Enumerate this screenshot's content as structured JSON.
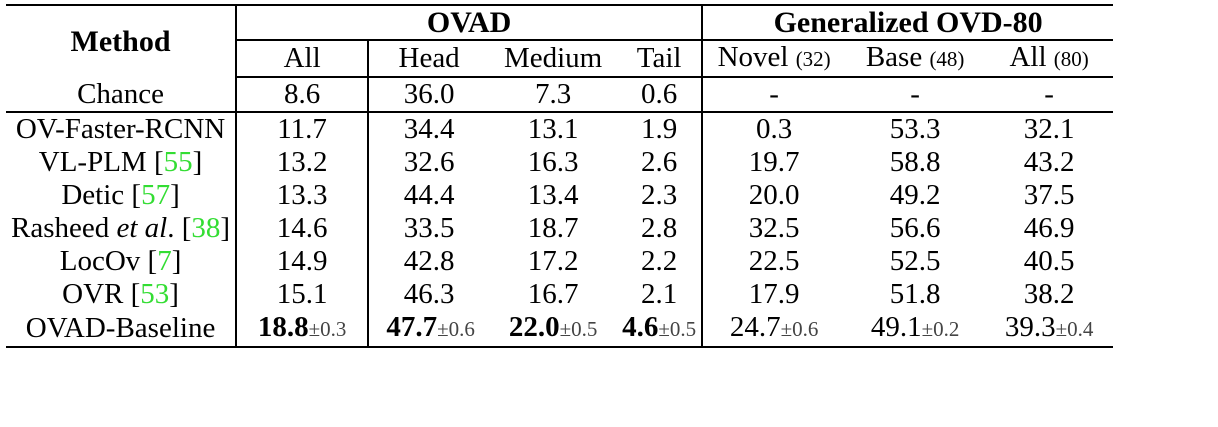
{
  "header": {
    "method": "Method",
    "ovad": "OVAD",
    "ovd": "Generalized OVD-80",
    "cols": [
      {
        "label": "All",
        "sub": ""
      },
      {
        "label": "Head",
        "sub": ""
      },
      {
        "label": "Medium",
        "sub": ""
      },
      {
        "label": "Tail",
        "sub": ""
      },
      {
        "label": "Novel",
        "sub": "(32)"
      },
      {
        "label": "Base",
        "sub": "(48)"
      },
      {
        "label": "All",
        "sub": "(80)"
      }
    ]
  },
  "chance": {
    "method": "Chance",
    "values": [
      "8.6",
      "36.0",
      "7.3",
      "0.6",
      "-",
      "-",
      "-"
    ]
  },
  "rows": [
    {
      "method": "OV-Faster-RCNN",
      "italic": "",
      "tail": "",
      "cite": "",
      "values": [
        "11.7",
        "34.4",
        "13.1",
        "1.9",
        "0.3",
        "53.3",
        "32.1"
      ]
    },
    {
      "method": "VL-PLM ",
      "italic": "",
      "tail": "",
      "cite": "55",
      "values": [
        "13.2",
        "32.6",
        "16.3",
        "2.6",
        "19.7",
        "58.8",
        "43.2"
      ]
    },
    {
      "method": "Detic ",
      "italic": "",
      "tail": "",
      "cite": "57",
      "values": [
        "13.3",
        "44.4",
        "13.4",
        "2.3",
        "20.0",
        "49.2",
        "37.5"
      ]
    },
    {
      "method": "Rasheed ",
      "italic": "et al",
      "tail": ". ",
      "cite": "38",
      "values": [
        "14.6",
        "33.5",
        "18.7",
        "2.8",
        "32.5",
        "56.6",
        "46.9"
      ]
    },
    {
      "method": "LocOv ",
      "italic": "",
      "tail": "",
      "cite": "7",
      "values": [
        "14.9",
        "42.8",
        "17.2",
        "2.2",
        "22.5",
        "52.5",
        "40.5"
      ]
    },
    {
      "method": "OVR ",
      "italic": "",
      "tail": "",
      "cite": "53",
      "values": [
        "15.1",
        "46.3",
        "16.7",
        "2.1",
        "17.9",
        "51.8",
        "38.2"
      ]
    }
  ],
  "baseline": {
    "method": "OVAD-Baseline",
    "values": [
      {
        "v": "18.8",
        "pm": "±0.3"
      },
      {
        "v": "47.7",
        "pm": "±0.6"
      },
      {
        "v": "22.0",
        "pm": "±0.5"
      },
      {
        "v": "4.6",
        "pm": "±0.5"
      },
      {
        "v": "24.7",
        "pm": "±0.6"
      },
      {
        "v": "49.1",
        "pm": "±0.2"
      },
      {
        "v": "39.3",
        "pm": "±0.4"
      }
    ]
  }
}
